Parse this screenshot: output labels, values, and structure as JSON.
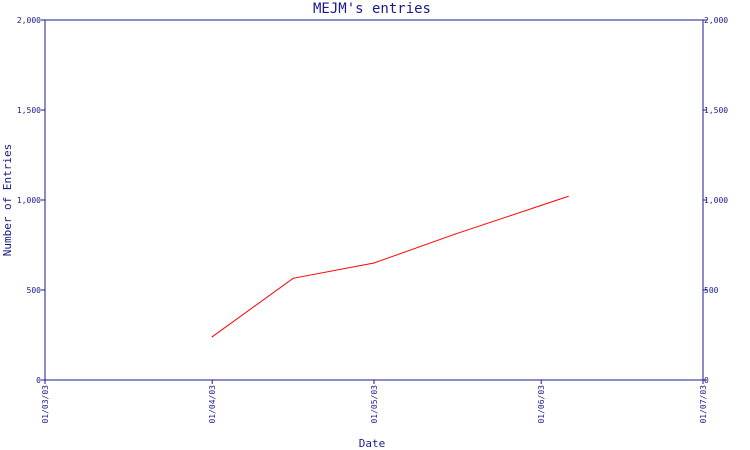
{
  "chart_data": {
    "type": "line",
    "title": "MEJM's entries",
    "xlabel": "Date",
    "ylabel": "Number of Entries",
    "x_ticks": [
      "01/03/03",
      "01/04/03",
      "01/05/03",
      "01/06/03",
      "01/07/03"
    ],
    "y_ticks": [
      "0",
      "500",
      "1,000",
      "1,500",
      "2,000"
    ],
    "ylim": [
      0,
      2000
    ],
    "xlim": [
      "2003-03-01",
      "2003-07-01"
    ],
    "grid": false,
    "series": [
      {
        "points": [
          {
            "x": "2003-04-01",
            "y": 240
          },
          {
            "x": "2003-04-16",
            "y": 565
          },
          {
            "x": "2003-05-01",
            "y": 650
          },
          {
            "x": "2003-05-16",
            "y": 810
          },
          {
            "x": "2003-06-01",
            "y": 970
          },
          {
            "x": "2003-06-06",
            "y": 1020
          }
        ]
      }
    ],
    "colors": {
      "axis": "#1a1a8c",
      "series": "#ff0000"
    }
  }
}
